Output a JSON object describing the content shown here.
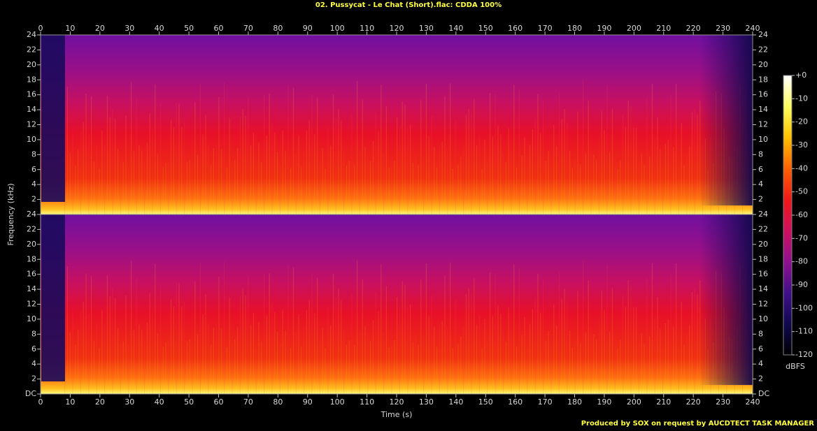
{
  "chart_data": {
    "type": "spectrogram",
    "title": "02. Pussycat - Le Chat (Short).flac: CDDA 100%",
    "xlabel": "Time (s)",
    "ylabel": "Frequency (kHz)",
    "colorbar_label": "dBFS",
    "footer": "Produced by SOX on request by AUCDTECT TASK MANAGER",
    "xlim": [
      0,
      240
    ],
    "xticks": [
      0,
      10,
      20,
      30,
      40,
      50,
      60,
      70,
      80,
      90,
      100,
      110,
      120,
      130,
      140,
      150,
      160,
      170,
      180,
      190,
      200,
      210,
      220,
      230,
      240
    ],
    "ylim": [
      0,
      24
    ],
    "yticks": [
      {
        "value": 0,
        "label": "DC"
      },
      2,
      4,
      6,
      8,
      10,
      12,
      14,
      16,
      18,
      20,
      22,
      24
    ],
    "zlim": [
      -120,
      0
    ],
    "zticks": [
      {
        "value": 0,
        "label": "+0"
      },
      -10,
      -20,
      -30,
      -40,
      -50,
      -60,
      -70,
      -80,
      -90,
      -100,
      -110,
      -120
    ],
    "colormap": [
      "#ffffff",
      "#ffff60",
      "#ffc000",
      "#ff6000",
      "#f01818",
      "#d01060",
      "#901090",
      "#40108a",
      "#100850",
      "#000000"
    ]
  }
}
